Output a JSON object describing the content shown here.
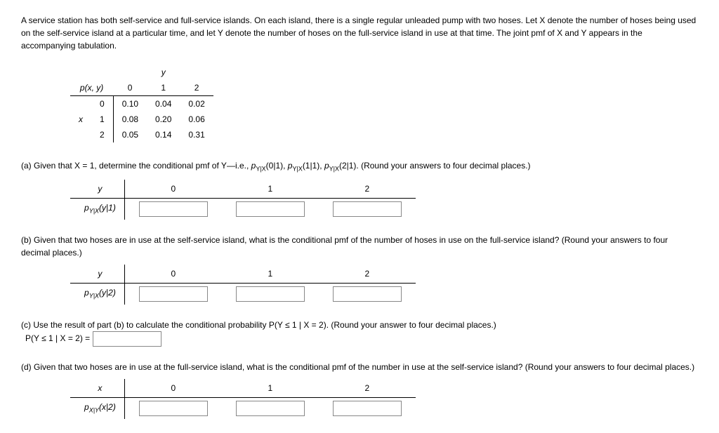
{
  "intro": "A service station has both self-service and full-service islands. On each island, there is a single regular unleaded pump with two hoses. Let X denote the number of hoses being used on the self-service island at a particular time, and let Y denote the number of hoses on the full-service island in use at that time. The joint pmf of X and Y appears in the accompanying tabulation.",
  "pmf": {
    "corner": "p(x, y)",
    "y_label": "y",
    "x_label": "x",
    "y_vals": [
      "0",
      "1",
      "2"
    ],
    "x_vals": [
      "0",
      "1",
      "2"
    ],
    "rows": [
      [
        "0.10",
        "0.04",
        "0.02"
      ],
      [
        "0.08",
        "0.20",
        "0.06"
      ],
      [
        "0.05",
        "0.14",
        "0.31"
      ]
    ]
  },
  "a": {
    "text_before": "(a) Given that X = 1, determine the conditional pmf of Y—i.e., ",
    "p0": "p",
    "sub0": "Y|X",
    "arg0": "(0|1), ",
    "p1": "p",
    "sub1": "Y|X",
    "arg1": "(1|1), ",
    "p2": "p",
    "sub2": "Y|X",
    "arg2": "(2|1). ",
    "text_after": "(Round your answers to four decimal places.)",
    "var": "y",
    "cols": [
      "0",
      "1",
      "2"
    ],
    "row_label_p": "p",
    "row_label_sub": "Y|X",
    "row_label_arg": "(y|1)"
  },
  "b": {
    "text": "(b) Given that two hoses are in use at the self-service island, what is the conditional pmf of the number of hoses in use on the full-service island? (Round your answers to four decimal places.)",
    "var": "y",
    "cols": [
      "0",
      "1",
      "2"
    ],
    "row_label_p": "p",
    "row_label_sub": "Y|X",
    "row_label_arg": "(y|2)"
  },
  "c": {
    "text": "(c) Use the result of part (b) to calculate the conditional probability P(Y ≤ 1 | X = 2). (Round your answer to four decimal places.)",
    "label": "P(Y ≤ 1 | X = 2) ="
  },
  "d": {
    "text": "(d) Given that two hoses are in use at the full-service island, what is the conditional pmf of the number in use at the self-service island? (Round your answers to four decimal places.)",
    "var": "x",
    "cols": [
      "0",
      "1",
      "2"
    ],
    "row_label_p": "p",
    "row_label_sub": "X|Y",
    "row_label_arg": "(x|2)"
  }
}
